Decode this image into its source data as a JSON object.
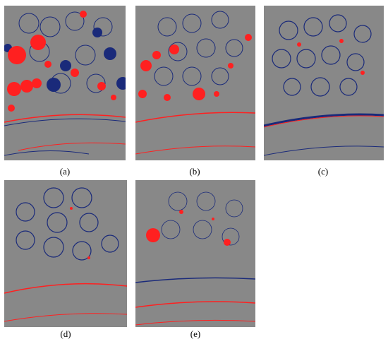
{
  "figure": {
    "colors": {
      "background": "#888888",
      "red": "#ff2020",
      "blue": "#1a2a7a"
    },
    "panels": [
      {
        "id": "a",
        "label": "(a)"
      },
      {
        "id": "b",
        "label": "(b)"
      },
      {
        "id": "c",
        "label": "(c)"
      },
      {
        "id": "d",
        "label": "(d)"
      },
      {
        "id": "e",
        "label": "(e)"
      }
    ]
  }
}
